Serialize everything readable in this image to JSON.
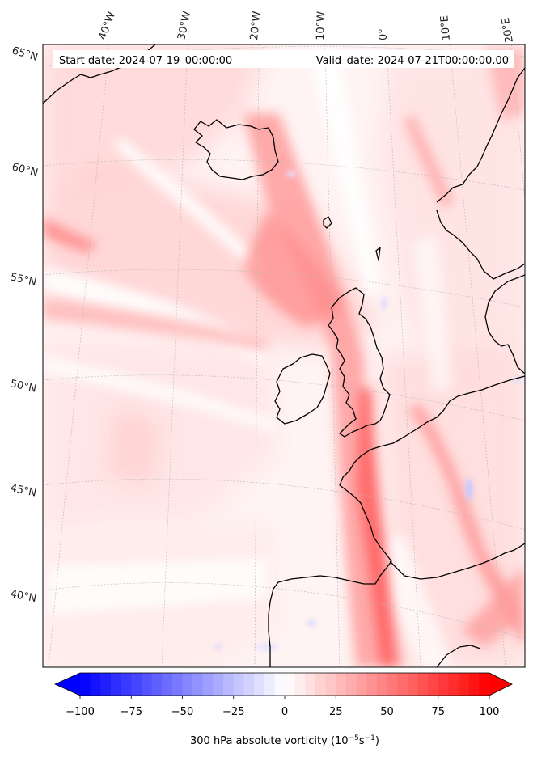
{
  "header": {
    "start_label": "Start date: 2024-07-19_00:00:00",
    "valid_label": "Valid_date: 2024-07-21T00:00:00.00"
  },
  "longitude_labels": [
    "40°W",
    "30°W",
    "20°W",
    "10°W",
    "0°",
    "10°E",
    "20°E"
  ],
  "latitude_labels": [
    "65°N",
    "60°N",
    "55°N",
    "50°N",
    "45°N",
    "40°N"
  ],
  "field": {
    "variable": "300 hPa absolute vorticity",
    "units": "10⁻⁵s⁻¹",
    "colormap": "bwr",
    "min_color": "#0000ff",
    "max_color": "#ff0000",
    "mid_color": "#ffffff",
    "coastline_color": "#000000",
    "gridline_color": "#b8b8b8"
  },
  "colorbar": {
    "ticks": [
      "−100",
      "−75",
      "−50",
      "−25",
      "0",
      "25",
      "50",
      "75",
      "100"
    ],
    "min": -100,
    "max": 100,
    "levels": 41,
    "extend": "both",
    "label_main": "300 hPa absolute vorticity (10",
    "label_exp": "−5",
    "label_unit": "s",
    "label_exp2": "−1",
    "label_close": ")"
  }
}
